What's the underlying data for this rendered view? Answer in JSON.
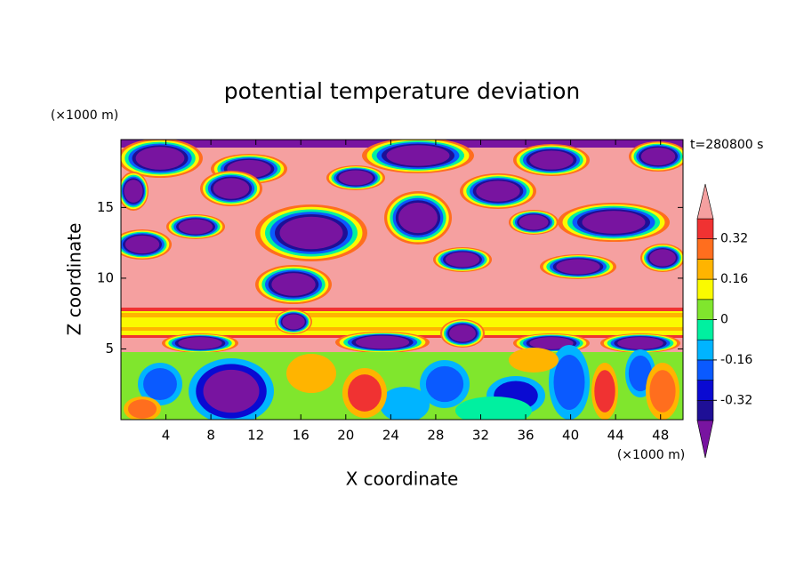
{
  "chart_data": {
    "type": "contour",
    "title": "potential temperature deviation",
    "xlabel": "X coordinate",
    "ylabel": "Z coordinate",
    "x_unit": "(×1000 m)",
    "y_unit": "(×1000 m)",
    "time_label": "t=280800 s",
    "xlim": [
      0,
      50
    ],
    "xticks": [
      4,
      8,
      12,
      16,
      20,
      24,
      28,
      32,
      36,
      40,
      44,
      48
    ],
    "ylim": [
      0,
      19.8
    ],
    "yticks": [
      5,
      10,
      15
    ],
    "colorbar": {
      "levels": [
        -0.4,
        -0.32,
        -0.24,
        -0.16,
        -0.08,
        0,
        0.08,
        0.16,
        0.24,
        0.32,
        0.4
      ],
      "ticks": [
        -0.32,
        -0.16,
        0,
        0.16,
        0.32
      ],
      "colors": [
        "#1e0f96",
        "#0a0ad2",
        "#0a5aff",
        "#00b4ff",
        "#00f0a0",
        "#80e62d",
        "#fafa00",
        "#ffb400",
        "#ff6e1e",
        "#f03232"
      ],
      "under_color": "#7814a0",
      "over_color": "#f5a0a0"
    }
  }
}
